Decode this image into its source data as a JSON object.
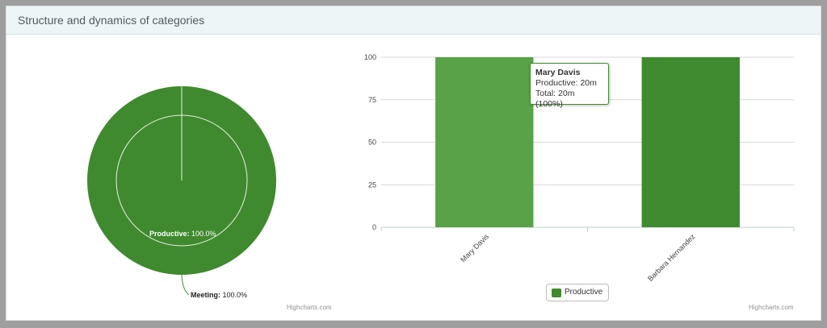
{
  "panel": {
    "title": "Structure and dynamics of categories"
  },
  "pie": {
    "inner_label_name": "Productive:",
    "inner_label_value": " 100.0%",
    "outer_label_name": "Meeting:",
    "outer_label_value": " 100.0%",
    "color": "#3f8a2e",
    "credit": "Highcharts.com"
  },
  "chart_data": {
    "type": "bar",
    "categories": [
      "Mary Davis",
      "Barbara Hernandez"
    ],
    "series": [
      {
        "name": "Productive",
        "values": [
          100,
          100
        ]
      }
    ],
    "ylim": [
      0,
      100
    ],
    "yticks": [
      "100",
      "75",
      "50",
      "25",
      "0"
    ],
    "colors": {
      "bar": "#3f8a2e",
      "bar_hover": "#59a247"
    }
  },
  "tooltip": {
    "name": "Mary Davis",
    "line1": "Productive: 20m",
    "line2": "Total: 20m (100%)"
  },
  "legend": {
    "label": "Productive"
  },
  "bar_credit": "Highcharts.com"
}
